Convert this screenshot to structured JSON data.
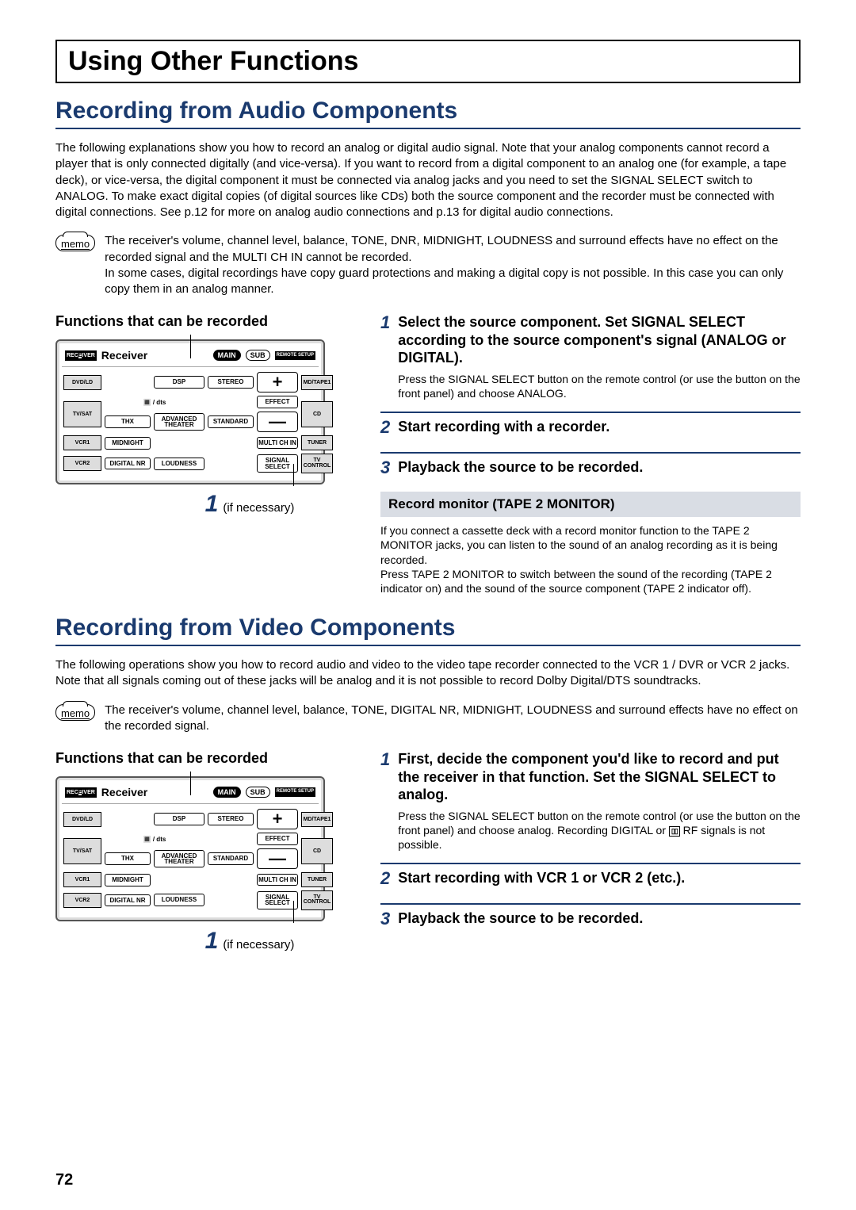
{
  "colors": {
    "accent": "#1a3a6e",
    "inset_bg": "#d9dde4"
  },
  "chapter_title": "Using Other Functions",
  "page_number": "72",
  "memo_label": "memo",
  "callout": {
    "num": "1",
    "note": "(if necessary)"
  },
  "remote": {
    "rec": "RECEIVER",
    "title": "Receiver",
    "main": "MAIN",
    "sub": "SUB",
    "remote_setup": "REMOTE\nSETUP",
    "side": [
      "DVD/LD",
      "TV/SAT",
      "VCR1",
      "VCR2",
      "MD/TAPE1",
      "CD",
      "TUNER",
      "TV\nCONTROL"
    ],
    "row1": [
      "DSP",
      "STEREO"
    ],
    "dts": "🔳 / dts",
    "effect": "EFFECT",
    "row2": [
      "THX",
      "ADVANCED\nTHEATER",
      "STANDARD"
    ],
    "midnight": "MIDNIGHT",
    "multi_ch": "MULTI CH\nIN",
    "row4": [
      "DIGITAL\nNR",
      "LOUDNESS"
    ],
    "signal": "SIGNAL\nSELECT",
    "plus": "+",
    "minus": "—"
  },
  "sec1": {
    "title": "Recording from Audio Components",
    "intro": "The following explanations show you how to record an analog or digital audio signal. Note that your analog components cannot record a player that is only connected digitally (and vice-versa). If you want to record from a digital component to an analog one (for example, a tape deck), or vice-versa, the digital component it must be connected via analog jacks and you need to set the SIGNAL SELECT switch to ANALOG. To make exact digital copies (of digital sources like CDs) both the source component and the recorder must be connected with digital connections. See p.12 for more on analog audio connections and p.13 for digital audio connections.",
    "memo": "The receiver's volume, channel level, balance, TONE, DNR, MIDNIGHT, LOUDNESS and surround effects have no effect on the recorded signal and the MULTI CH IN cannot be recorded.\nIn some cases, digital recordings have copy guard protections and making a digital copy is not possible. In this case you can only copy them in an analog manner.",
    "func_heading": "Functions that can be recorded",
    "steps": [
      {
        "n": "1",
        "title": "Select the source component. Set SIGNAL SELECT according to the source component's signal (ANALOG or DIGITAL).",
        "text": "Press the SIGNAL SELECT button on the remote control (or use the button on the front panel) and choose ANALOG."
      },
      {
        "n": "2",
        "title": "Start recording with a recorder.",
        "text": ""
      },
      {
        "n": "3",
        "title": "Playback the source to be recorded.",
        "text": ""
      }
    ],
    "inset_title": "Record monitor (TAPE 2 MONITOR)",
    "inset_text": "If you connect a cassette deck with a record monitor function to the TAPE 2 MONITOR jacks, you can listen to the sound of an analog recording as it is being recorded.\nPress TAPE 2 MONITOR to switch between the sound of the recording (TAPE 2 indicator on) and the sound of the source component (TAPE 2 indicator off)."
  },
  "sec2": {
    "title": "Recording from Video Components",
    "intro": "The following operations show you how to record audio and video to the video tape recorder connected to the VCR 1 / DVR or VCR 2 jacks. Note that all signals coming out of these jacks will be analog and it is not possible to record Dolby Digital/DTS soundtracks.",
    "memo": "The receiver's volume, channel level, balance, TONE, DIGITAL NR, MIDNIGHT, LOUDNESS and surround effects have no effect on the recorded signal.",
    "func_heading": "Functions that can be recorded",
    "steps": [
      {
        "n": "1",
        "title": "First, decide the component you'd like to record and put the receiver in that function. Set the SIGNAL SELECT to analog.",
        "text_pre": "Press the SIGNAL SELECT button on the remote control (or use the button on the front panel) and choose analog. Recording  DIGITAL or ",
        "text_post": " RF signals is not possible."
      },
      {
        "n": "2",
        "title": "Start recording with VCR 1 or VCR 2 (etc.).",
        "text": ""
      },
      {
        "n": "3",
        "title": "Playback the source to be recorded.",
        "text": ""
      }
    ]
  }
}
